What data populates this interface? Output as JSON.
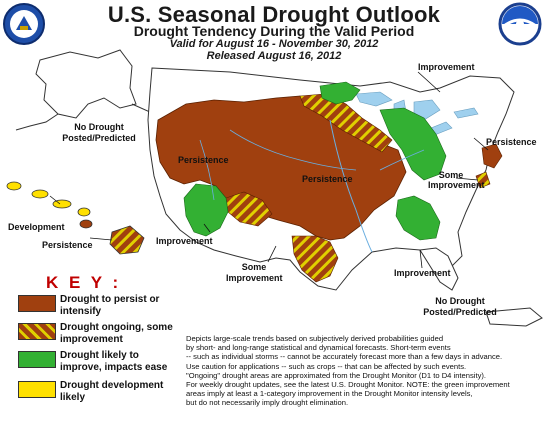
{
  "header": {
    "title": "U.S. Seasonal Drought Outlook",
    "subtitle": "Drought Tendency During the Valid Period",
    "valid": "Valid for August 16 - November 30, 2012",
    "released": "Released August 16, 2012"
  },
  "map_labels": {
    "improvement_north": "Improvement",
    "persistence_west": "Persistence",
    "persistence_central": "Persistence",
    "persistence_east": "Persistence",
    "some_improvement_east": "Some Improvement",
    "improvement_southwest": "Improvement",
    "some_improvement_south": "Some Improvement",
    "improvement_southeast": "Improvement",
    "alaska_note": "No Drought Posted/Predicted",
    "hawaii_development": "Development",
    "hawaii_persistence": "Persistence",
    "puerto_rico_note": "No Drought Posted/Predicted"
  },
  "key": {
    "title": "K E Y :",
    "items": [
      {
        "label": "Drought to persist or intensify",
        "color": "#a0400f"
      },
      {
        "label": "Drought ongoing, some improvement",
        "color": "#a0400f",
        "stripe": "#e0d000"
      },
      {
        "label": "Drought likely to improve, impacts ease",
        "color": "#33b033"
      },
      {
        "label": "Drought development likely",
        "color": "#ffe000"
      }
    ]
  },
  "notes": [
    "Depicts large-scale trends based on subjectively derived probabilities guided",
    "by short- and long-range statistical and dynamical forecasts. Short-term events",
    "-- such as individual storms -- cannot be accurately forecast more than a few days in advance.",
    "Use caution for applications -- such as crops -- that can be affected by such events.",
    "\"Ongoing\" drought areas are approximated from the Drought Monitor (D1 to D4 intensity).",
    "For weekly drought updates, see the latest U.S. Drought Monitor. NOTE: the green improvement",
    "areas imply at least a 1-category improvement in the Drought Monitor intensity levels,",
    "but do not necessarily imply drought elimination."
  ],
  "logos": {
    "left_seal": "Department of Commerce",
    "right_seal": "NOAA"
  },
  "colors": {
    "persist": "#a0400f",
    "improve": "#33b033",
    "stripe": "#e0d000",
    "develop": "#ffe000",
    "land": "#ffffff",
    "water": "#9fd0ee"
  }
}
